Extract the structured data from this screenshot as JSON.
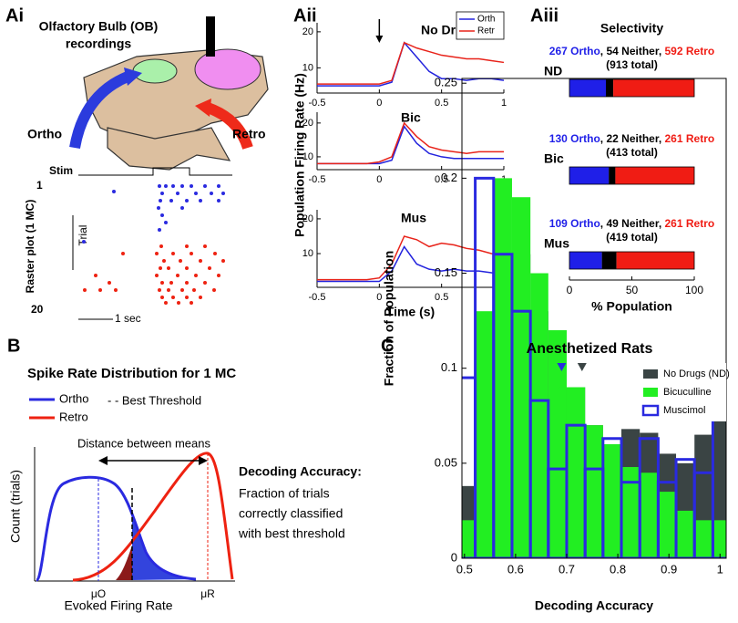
{
  "figure_labels": [
    "Ai",
    "Aii",
    "Aiii",
    "B",
    "C"
  ],
  "diagram_ai": {
    "title_lines": [
      "Olfactory Bulb (OB)",
      "recordings"
    ],
    "ortho": "Ortho",
    "retro": "Retro",
    "stim": "Stim",
    "trial_first": "1",
    "trial_last": "20",
    "raster_label": "Raster plot (1 MC)",
    "trial_axis": "Trial",
    "scale_bar": "1 sec"
  },
  "aii_ylabel": "Population Firing Rate (Hz)",
  "chart_data": [
    {
      "type": "line",
      "title": "No Drug",
      "title_color": "#3d4747",
      "x": [
        -0.5,
        -0.4,
        -0.3,
        -0.2,
        -0.1,
        0,
        0.1,
        0.2,
        0.3,
        0.4,
        0.5,
        0.6,
        0.7,
        0.8,
        0.9,
        1
      ],
      "xlim": [
        -0.5,
        1
      ],
      "xticks": [
        -0.5,
        0,
        0.5,
        1
      ],
      "ylim": [
        3,
        22.5
      ],
      "yticks": [
        10,
        20
      ],
      "legend": "upper right",
      "arrow_x": 0,
      "series": [
        {
          "name": "Orth",
          "color": "#2323dd",
          "values": [
            5,
            5,
            5,
            5,
            5,
            5,
            6,
            17,
            13,
            9,
            7,
            7,
            6.5,
            7,
            7,
            6.5
          ]
        },
        {
          "name": "Retr",
          "color": "#e8231a",
          "values": [
            5.5,
            5.5,
            5.5,
            5.5,
            5.5,
            5.5,
            6.5,
            17,
            15.5,
            14.5,
            13.5,
            13,
            12.5,
            12.5,
            12,
            11.5
          ]
        }
      ]
    },
    {
      "type": "line",
      "title": "Bic",
      "title_color": "#33e033",
      "x": [
        -0.5,
        -0.4,
        -0.3,
        -0.2,
        -0.1,
        0,
        0.1,
        0.2,
        0.3,
        0.4,
        0.5,
        0.6,
        0.7,
        0.8,
        0.9,
        1
      ],
      "xlim": [
        -0.5,
        1
      ],
      "xticks": [
        -0.5,
        0,
        0.5,
        1
      ],
      "ylim": [
        6.2,
        23.2
      ],
      "yticks": [
        10,
        20
      ],
      "series": [
        {
          "color": "#2323dd",
          "values": [
            8,
            8,
            8,
            8,
            8,
            8,
            9,
            19,
            14,
            11,
            10,
            9.5,
            9.5,
            9.5,
            9.5,
            9.5
          ]
        },
        {
          "color": "#e8231a",
          "values": [
            8,
            8,
            8,
            8,
            8,
            8.5,
            10,
            20,
            16,
            13,
            12,
            11.5,
            11,
            11.5,
            11.5,
            11.5
          ]
        }
      ]
    },
    {
      "type": "line",
      "title": "Mus",
      "title_color": "#2f2fd6",
      "xlabel": "Time (s)",
      "x": [
        -0.5,
        -0.4,
        -0.3,
        -0.2,
        -0.1,
        0,
        0.1,
        0.2,
        0.3,
        0.4,
        0.5,
        0.6,
        0.7,
        0.8,
        0.9,
        1
      ],
      "xlim": [
        -0.5,
        1
      ],
      "xticks": [
        -0.5,
        0,
        0.5,
        1
      ],
      "ylim": [
        0.3,
        22.6
      ],
      "yticks": [
        10,
        20
      ],
      "series": [
        {
          "color": "#2323dd",
          "values": [
            2,
            2,
            2,
            2,
            2,
            2,
            5,
            12,
            7,
            5.5,
            5,
            5.5,
            5,
            5,
            4.5,
            4
          ]
        },
        {
          "color": "#e8231a",
          "values": [
            2.5,
            2.5,
            2.5,
            2.5,
            2.5,
            3,
            7,
            15,
            14,
            12,
            13,
            12.5,
            11.5,
            11,
            10,
            9.5
          ]
        }
      ]
    },
    {
      "type": "bar",
      "orientation": "horizontal",
      "stacked": true,
      "title": "Selectivity",
      "xlabel": "% Population",
      "xlim": [
        0,
        100
      ],
      "xticks": [
        0,
        50,
        100
      ],
      "categories": [
        "ND",
        "Bic",
        "Mus"
      ],
      "category_colors": [
        "#3d4747",
        "#33e033",
        "#2f2fd6"
      ],
      "summaries": [
        [
          "267 Ortho",
          ", 54 Neither, ",
          "592 Retro"
        ],
        [
          "130 Ortho",
          ", 22 Neither, ",
          "261 Retro"
        ],
        [
          "109 Ortho",
          ", 49 Neither, ",
          "261 Retro"
        ]
      ],
      "totals": [
        "(913 total)",
        "(413 total)",
        "(419 total)"
      ],
      "series": [
        {
          "color": "#1f1fe8",
          "values": [
            29.2,
            31.5,
            26
          ]
        },
        {
          "color": "#000000",
          "values": [
            5.9,
            5.3,
            11.7
          ]
        },
        {
          "color": "#f01c14",
          "values": [
            64.9,
            63.2,
            62.3
          ]
        }
      ]
    },
    {
      "type": "histogram",
      "title": "Anesthetized Rats",
      "xlabel": "Decoding Accuracy",
      "ylabel": "Fraction of Population",
      "bins": [
        0.486,
        0.521,
        0.557,
        0.593,
        0.629,
        0.664,
        0.7,
        0.736,
        0.771,
        0.807,
        0.843,
        0.879,
        0.914,
        0.95,
        0.986,
        1.021
      ],
      "xlim": [
        0.495,
        1.012
      ],
      "xticks": [
        0.5,
        0.6,
        0.7,
        0.8,
        0.9,
        1
      ],
      "ylim": [
        0,
        0.2525
      ],
      "yticks": [
        0,
        0.05,
        0.1,
        0.15,
        0.2,
        0.25
      ],
      "series": [
        {
          "name": "No Drugs (ND)",
          "color": "#3a4444",
          "style": "filled",
          "mean": 0.73,
          "values": [
            0.038,
            0.1,
            0.15,
            0.16,
            0.13,
            0.11,
            0.09,
            0.07,
            0.06,
            0.068,
            0.066,
            0.055,
            0.05,
            0.065,
            0.075
          ]
        },
        {
          "name": "Bicuculline",
          "color": "#22ee22",
          "style": "filled",
          "mean": 0.685,
          "values": [
            0.02,
            0.13,
            0.2,
            0.19,
            0.15,
            0.12,
            0.09,
            0.07,
            0.06,
            0.048,
            0.045,
            0.035,
            0.025,
            0.02,
            0.02
          ]
        },
        {
          "name": "Muscimol",
          "color": "#2a2ae0",
          "style": "outline",
          "mean": 0.69,
          "values": [
            0.095,
            0.2,
            0.16,
            0.13,
            0.083,
            0.047,
            0.07,
            0.047,
            0.063,
            0.04,
            0.063,
            0.04,
            0.052,
            0.045,
            0.075
          ]
        }
      ]
    }
  ],
  "diagram_b": {
    "title": "Spike Rate Distribution for 1 MC",
    "legend_ortho": "Ortho",
    "legend_retro": "Retro",
    "legend_threshold": "- - Best Threshold",
    "distance": "Distance between means",
    "ylabel": "Count (trials)",
    "xlabel": "Evoked Firing Rate",
    "mu_o": "μO",
    "mu_r": "μR",
    "accuracy_title": "Decoding Accuracy:",
    "accuracy_lines": [
      "Fraction of trials",
      "correctly classified",
      "with best threshold"
    ]
  }
}
